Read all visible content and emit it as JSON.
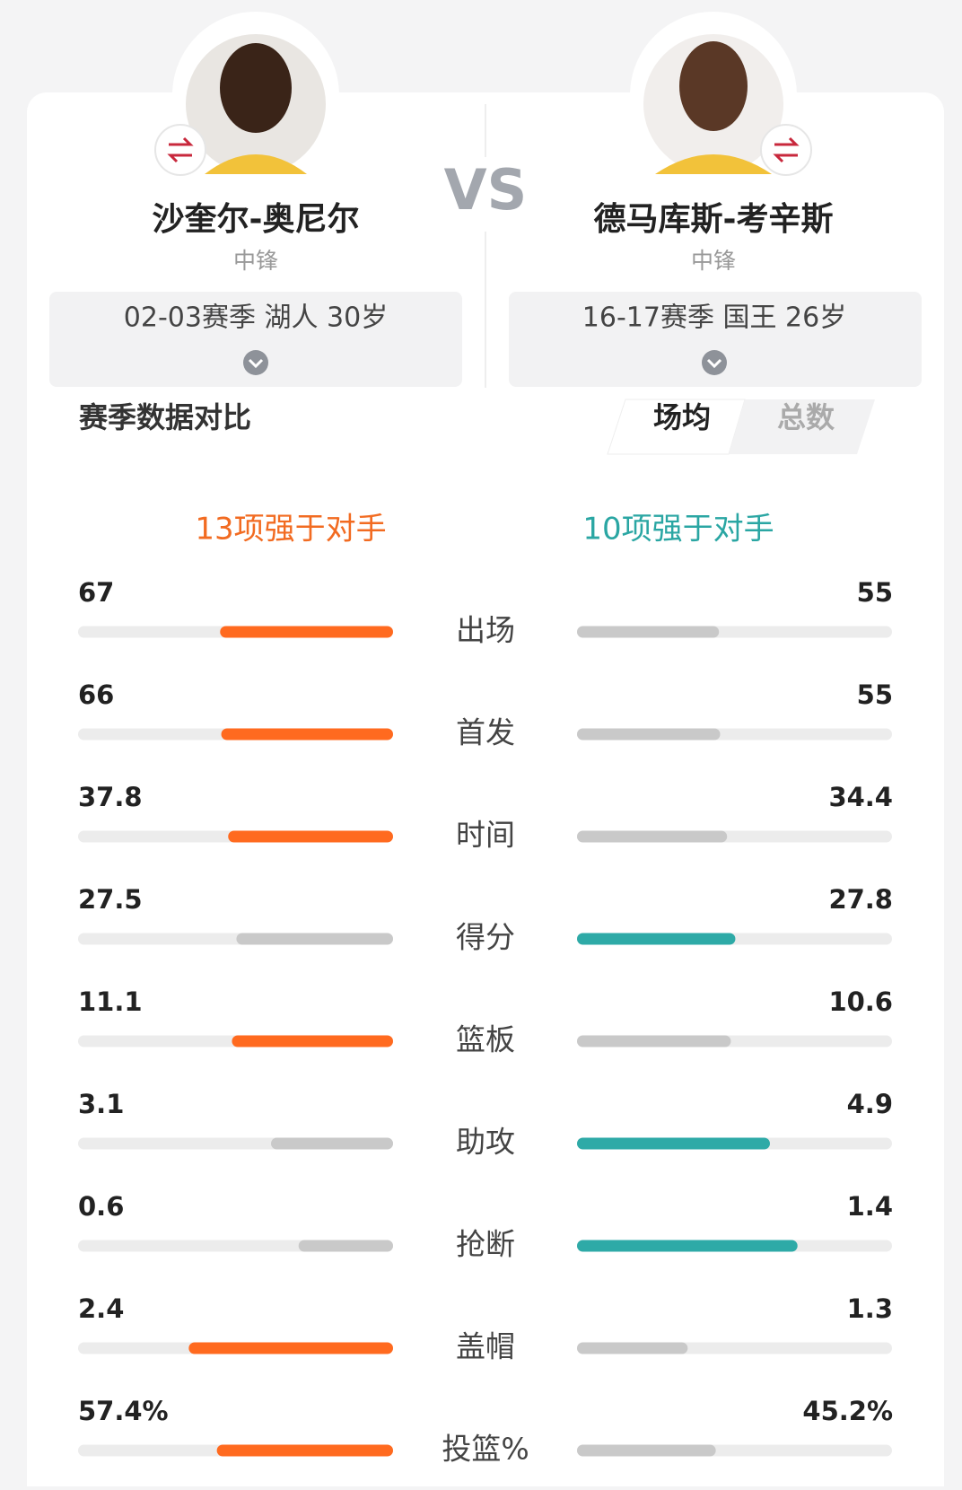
{
  "vs": "VS",
  "players": [
    {
      "name": "沙奎尔-奥尼尔",
      "position": "中锋",
      "season": "02-03赛季 湖人 30岁",
      "advantage": "13项强于对手"
    },
    {
      "name": "德马库斯-考辛斯",
      "position": "中锋",
      "season": "16-17赛季 国王 26岁",
      "advantage": "10项强于对手"
    }
  ],
  "section_title": "赛季数据对比",
  "tabs": [
    "场均",
    "总数"
  ],
  "stats": [
    {
      "label": "出场",
      "left": 67,
      "right": 55
    },
    {
      "label": "首发",
      "left": 66,
      "right": 55
    },
    {
      "label": "时间",
      "left": 37.8,
      "right": 34.4
    },
    {
      "label": "得分",
      "left": 27.5,
      "right": 27.8
    },
    {
      "label": "篮板",
      "left": 11.1,
      "right": 10.6
    },
    {
      "label": "助攻",
      "left": 3.1,
      "right": 4.9
    },
    {
      "label": "抢断",
      "left": 0.6,
      "right": 1.4
    },
    {
      "label": "盖帽",
      "left": 2.4,
      "right": 1.3
    },
    {
      "label": "投篮%",
      "left": 57.4,
      "left_label": "57.4%",
      "right": 45.2,
      "right_label": "45.2%"
    }
  ]
}
